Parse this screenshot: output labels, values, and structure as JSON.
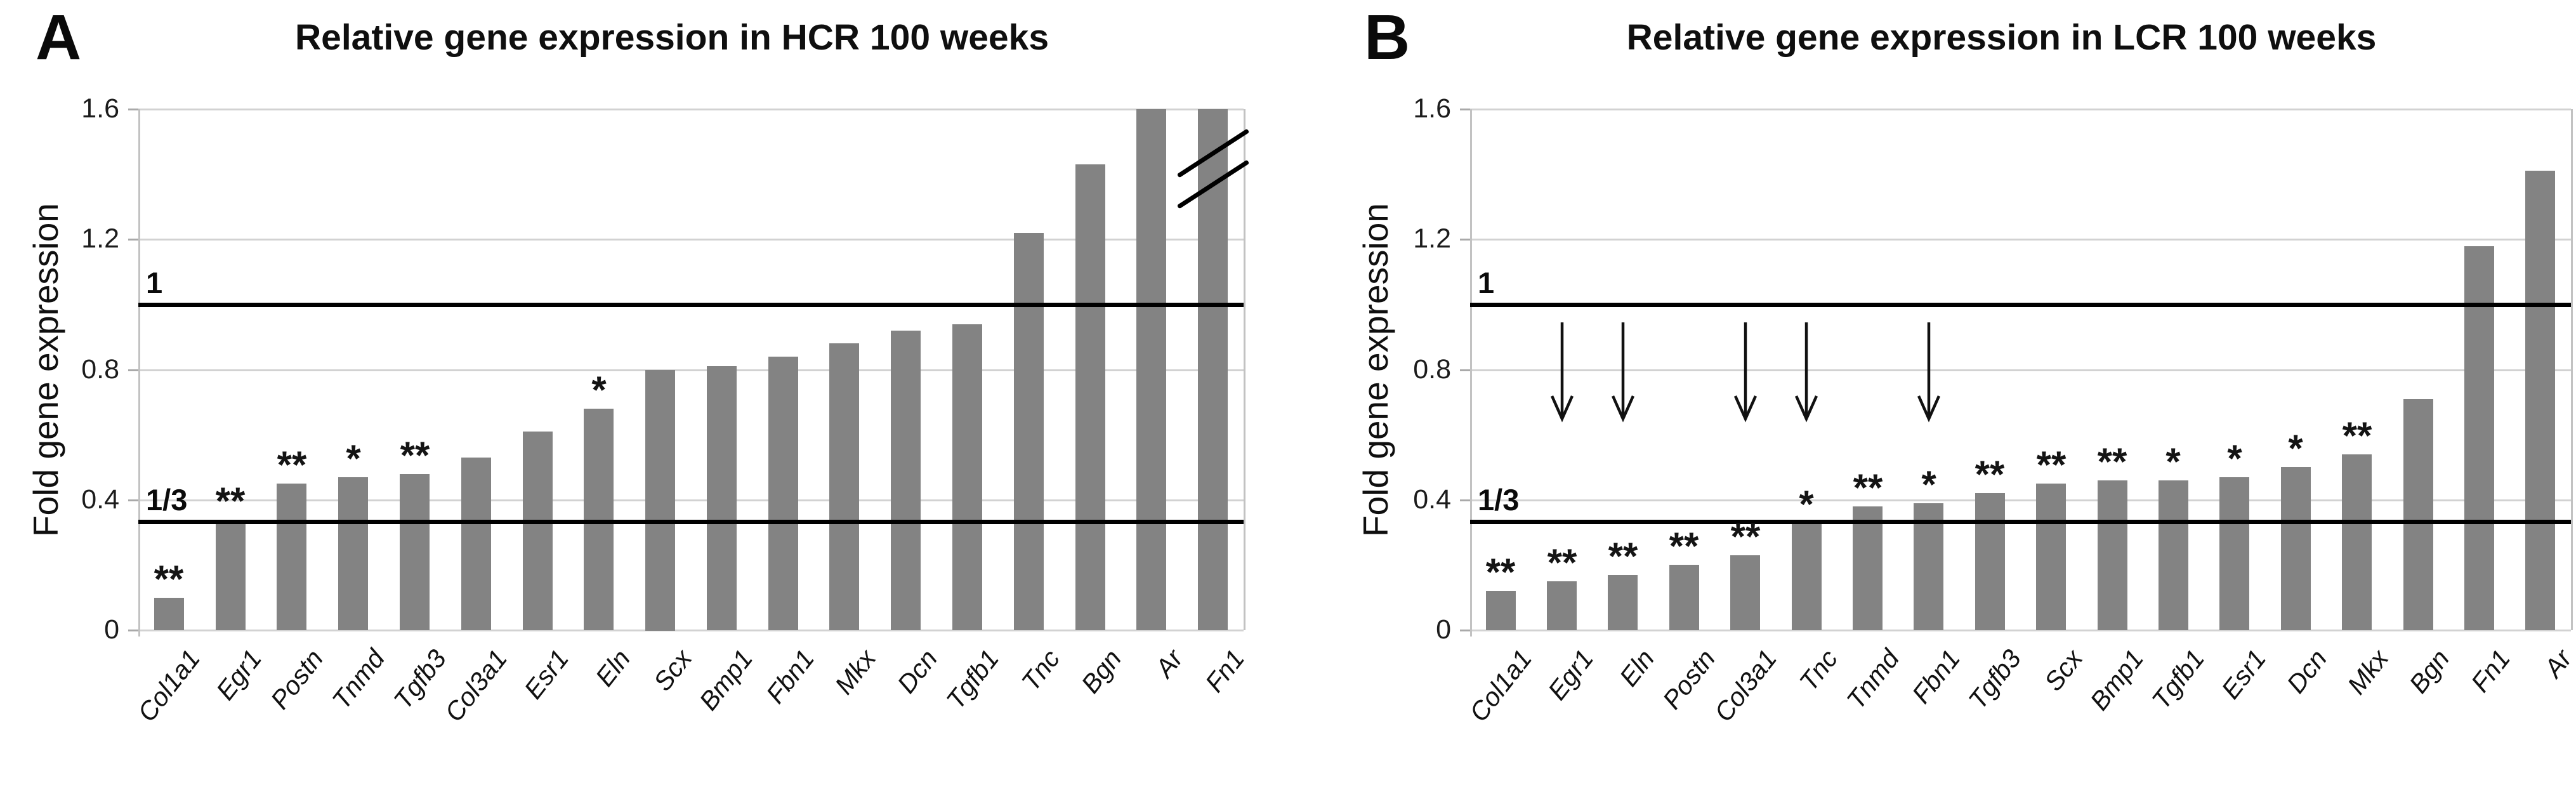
{
  "figure": {
    "background": "#ffffff",
    "bar_color": "#838383",
    "gridline_color": "#d2d2d2",
    "axis_color": "#c2c2c2",
    "reference_line_color": "#000000",
    "significance_note_single": "*",
    "significance_note_double": "**"
  },
  "chart_data": [
    {
      "type": "bar",
      "panel_label": "A",
      "title": "Relative gene expression in HCR 100 weeks",
      "xlabel": "",
      "ylabel": "Fold gene expression",
      "ylim": [
        0,
        1.6
      ],
      "yticks": [
        "0",
        "0.4",
        "0.8",
        "1.2",
        "1.6"
      ],
      "grid": true,
      "legend_position": "none",
      "reference_lines": [
        {
          "label": "1",
          "value": 1.0
        },
        {
          "label": "1/3",
          "value": 0.333
        }
      ],
      "categories": [
        "Col1a1",
        "Egr1",
        "Postn",
        "Tnmd",
        "Tgfb3",
        "Col3a1",
        "Esr1",
        "Eln",
        "Scx",
        "Bmp1",
        "Fbn1",
        "Mkx",
        "Dcn",
        "Tgfb1",
        "Tnc",
        "Bgn",
        "Ar",
        "Fn1"
      ],
      "values": [
        0.1,
        0.34,
        0.45,
        0.47,
        0.48,
        0.53,
        0.61,
        0.68,
        0.8,
        0.81,
        0.84,
        0.88,
        0.92,
        0.94,
        1.22,
        1.43,
        1.6,
        1.6
      ],
      "significance": [
        "**",
        "**",
        "**",
        "*",
        "**",
        "",
        "",
        "*",
        "",
        "",
        "",
        "",
        "",
        "",
        "",
        "",
        "",
        ""
      ],
      "down_arrows": [],
      "axis_break_bars": [
        "Fn1"
      ]
    },
    {
      "type": "bar",
      "panel_label": "B",
      "title": "Relative gene expression in LCR 100 weeks",
      "xlabel": "",
      "ylabel": "Fold gene expression",
      "ylim": [
        0,
        1.6
      ],
      "yticks": [
        "0",
        "0.4",
        "0.8",
        "1.2",
        "1.6"
      ],
      "grid": true,
      "legend_position": "none",
      "reference_lines": [
        {
          "label": "1",
          "value": 1.0
        },
        {
          "label": "1/3",
          "value": 0.333
        }
      ],
      "categories": [
        "Col1a1",
        "Egr1",
        "Eln",
        "Postn",
        "Col3a1",
        "Tnc",
        "Tnmd",
        "Fbn1",
        "Tgfb3",
        "Scx",
        "Bmp1",
        "Tgfb1",
        "Esr1",
        "Dcn",
        "Mkx",
        "Bgn",
        "Fn1",
        "Ar"
      ],
      "values": [
        0.12,
        0.15,
        0.17,
        0.2,
        0.23,
        0.33,
        0.38,
        0.39,
        0.42,
        0.45,
        0.46,
        0.46,
        0.47,
        0.5,
        0.54,
        0.71,
        1.18,
        1.41
      ],
      "significance": [
        "**",
        "**",
        "**",
        "**",
        "**",
        "*",
        "**",
        "*",
        "**",
        "**",
        "**",
        "*",
        "*",
        "*",
        "**",
        "",
        "",
        ""
      ],
      "down_arrows": [
        "Egr1",
        "Eln",
        "Col3a1",
        "Tnc",
        "Fbn1"
      ],
      "axis_break_bars": []
    }
  ]
}
